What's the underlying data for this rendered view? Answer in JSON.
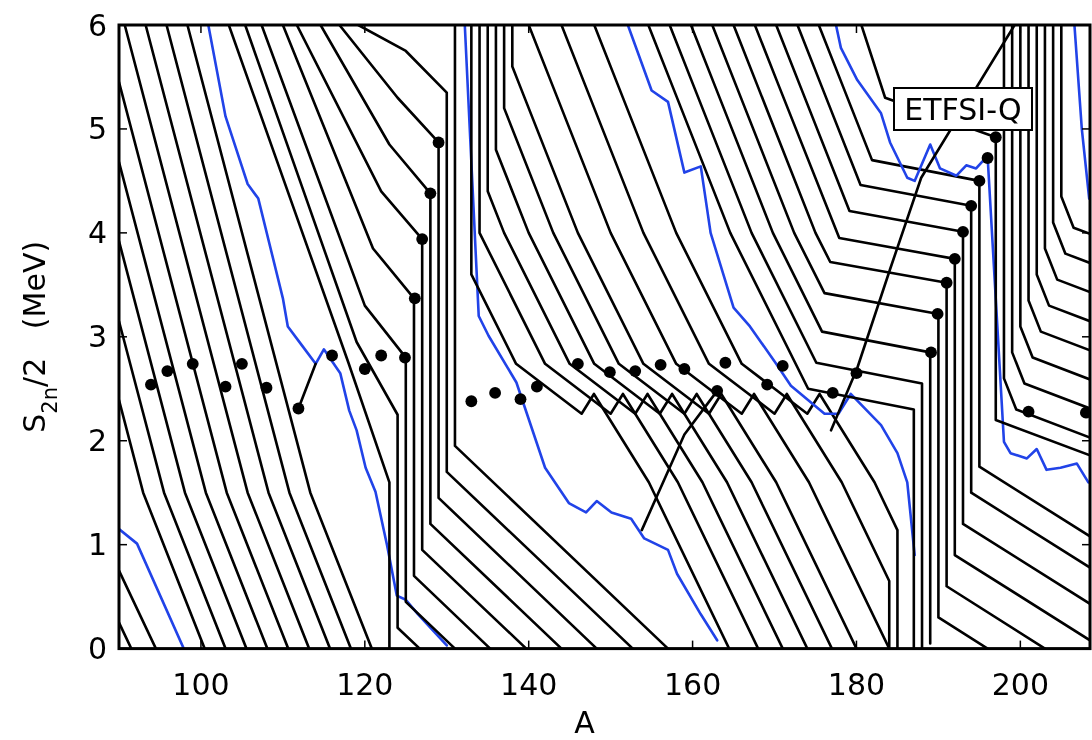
{
  "chart_data": {
    "type": "line",
    "xlabel": "A",
    "ylabel": "S$_{2n}$/2   (MeV)",
    "xlim": [
      90,
      208.5
    ],
    "ylim": [
      0,
      6
    ],
    "xticks": [
      100,
      120,
      140,
      160,
      180,
      200
    ],
    "yticks": [
      0,
      1,
      2,
      3,
      4,
      5,
      6
    ],
    "annotations": [
      "ETFSI-Q"
    ],
    "series": [
      {
        "color": "#000000",
        "x": [
          90,
          91.5
        ],
        "values": [
          0.25,
          0
        ]
      },
      {
        "color": "#000000",
        "x": [
          90,
          94.5
        ],
        "values": [
          0.75,
          0
        ]
      },
      {
        "color": "#2143e8",
        "x": [
          90,
          92.2,
          97.9
        ],
        "values": [
          1.15,
          1.01,
          0
        ]
      },
      {
        "color": "#000000",
        "x": [
          90,
          92.95,
          100.45
        ],
        "values": [
          2.39,
          1.5,
          0
        ]
      },
      {
        "color": "#000000",
        "x": [
          90,
          95.5,
          103
        ],
        "values": [
          3.15,
          1.5,
          0
        ]
      },
      {
        "color": "#000000",
        "x": [
          90,
          98.05,
          105.55
        ],
        "values": [
          3.92,
          1.5,
          0
        ]
      },
      {
        "color": "#000000",
        "x": [
          90,
          100.6,
          108.1
        ],
        "values": [
          4.68,
          1.5,
          0
        ]
      },
      {
        "color": "#000000",
        "x": [
          90,
          103.15,
          110.65
        ],
        "values": [
          5.45,
          1.5,
          0
        ]
      },
      {
        "color": "#000000",
        "x": [
          90.7,
          105.7,
          113.2
        ],
        "values": [
          6,
          1.5,
          0
        ]
      },
      {
        "color": "#000000",
        "x": [
          93.25,
          108.25,
          115.75
        ],
        "values": [
          6,
          1.5,
          0
        ]
      },
      {
        "color": "#000000",
        "x": [
          95.8,
          110.8,
          118.3
        ],
        "values": [
          6,
          1.5,
          0
        ]
      },
      {
        "color": "#000000",
        "x": [
          98.35,
          113.35,
          120.85
        ],
        "values": [
          6,
          1.5,
          0
        ]
      },
      {
        "color": "#2143e8",
        "x": [
          100.9,
          103,
          105.7,
          107,
          110,
          110.6,
          112.3,
          114,
          115,
          117,
          118.1,
          119,
          120.1,
          121.3,
          122.7,
          123.9,
          125,
          126.5,
          130
        ],
        "values": [
          6,
          5.12,
          4.47,
          4.33,
          3.37,
          3.1,
          2.92,
          2.74,
          2.88,
          2.65,
          2.29,
          2.1,
          1.74,
          1.51,
          1.0,
          0.51,
          0.47,
          0.33,
          0.03
        ]
      },
      {
        "color": "#000000",
        "x": [
          103.4,
          118,
          123,
          123
        ],
        "values": [
          6,
          2.75,
          1.6,
          0
        ]
      },
      {
        "color": "#000000",
        "x": [
          105.4,
          119,
          124,
          124,
          126.7
        ],
        "values": [
          6,
          2.95,
          2.25,
          0.2,
          0
        ]
      },
      {
        "color": "#000000",
        "x": [
          107.4,
          120,
          125,
          125,
          131
        ],
        "values": [
          6,
          3.3,
          2.8,
          0.45,
          0
        ]
      },
      {
        "color": "#000000",
        "x": [
          110,
          121,
          126,
          126,
          135.3
        ],
        "values": [
          6,
          3.85,
          3.37,
          0.7,
          0
        ]
      },
      {
        "color": "#000000",
        "x": [
          111.7,
          122,
          127,
          127,
          139.7
        ],
        "values": [
          6,
          4.4,
          3.94,
          0.95,
          0
        ]
      },
      {
        "color": "#000000",
        "x": [
          114.6,
          123,
          128,
          128,
          144
        ],
        "values": [
          6,
          4.85,
          4.38,
          1.2,
          0
        ]
      },
      {
        "color": "#000000",
        "x": [
          116.9,
          124,
          129,
          129,
          148.3
        ],
        "values": [
          6,
          5.3,
          4.87,
          1.45,
          0
        ]
      },
      {
        "color": "#000000",
        "x": [
          119.2,
          125,
          130,
          130,
          152.7
        ],
        "values": [
          6,
          5.75,
          5.35,
          1.7,
          0
        ]
      },
      {
        "color": "#000000",
        "x": [
          131,
          131,
          157
        ],
        "values": [
          6,
          1.95,
          0
        ]
      },
      {
        "color": "#2143e8",
        "x": [
          132.2,
          133.9,
          135.1,
          138.5,
          142,
          144.9,
          147,
          148.3,
          150.1,
          152.5,
          154.1,
          157,
          158.1,
          161,
          163
        ],
        "values": [
          6,
          3.2,
          3.01,
          2.56,
          1.74,
          1.4,
          1.31,
          1.42,
          1.31,
          1.25,
          1.06,
          0.95,
          0.72,
          0.33,
          0.08
        ]
      },
      {
        "color": "#000000",
        "x": [
          133,
          133,
          138.46,
          146.46,
          147.96,
          154.66,
          164.46
        ],
        "values": [
          6,
          3.6,
          2.74,
          2.26,
          2.45,
          1.6,
          0
        ]
      },
      {
        "color": "#000000",
        "x": [
          134,
          134,
          142,
          150,
          151.5,
          158.2,
          168
        ],
        "values": [
          6,
          4.0,
          2.74,
          2.26,
          2.45,
          1.6,
          0
        ]
      },
      {
        "color": "#000000",
        "x": [
          135,
          135,
          137,
          145,
          153,
          154.5,
          161.2,
          171
        ],
        "values": [
          6,
          4.4,
          4.0,
          2.74,
          2.26,
          2.45,
          1.6,
          0
        ]
      },
      {
        "color": "#000000",
        "x": [
          136,
          136,
          140,
          148,
          156,
          157.5,
          164.2,
          174
        ],
        "values": [
          6,
          4.8,
          4.0,
          2.74,
          2.26,
          2.45,
          1.6,
          0
        ]
      },
      {
        "color": "#000000",
        "x": [
          137,
          137,
          143,
          151,
          159,
          160.5,
          167.2,
          177
        ],
        "values": [
          6,
          5.2,
          4.0,
          2.74,
          2.26,
          2.45,
          1.6,
          0
        ]
      },
      {
        "color": "#000000",
        "x": [
          138,
          138,
          139,
          146,
          154,
          162,
          163.5,
          170.2,
          180
        ],
        "values": [
          6,
          5.6,
          5.4,
          4.0,
          2.74,
          2.26,
          2.45,
          1.6,
          0
        ]
      },
      {
        "color": "#000000",
        "x": [
          140,
          143,
          150,
          158,
          166,
          167.5,
          174.2,
          184
        ],
        "values": [
          6,
          5.4,
          4.0,
          2.74,
          2.26,
          2.45,
          1.6,
          0
        ]
      },
      {
        "color": "#000000",
        "x": [
          144,
          147,
          154,
          162,
          170,
          171.5,
          178.2,
          184,
          184
        ],
        "values": [
          6,
          5.4,
          4.0,
          2.74,
          2.26,
          2.45,
          1.6,
          0.65,
          0
        ]
      },
      {
        "color": "#000000",
        "x": [
          148,
          151,
          158,
          166,
          174,
          175.5,
          182.2,
          185,
          185
        ],
        "values": [
          6,
          5.4,
          4.0,
          2.74,
          2.26,
          2.45,
          1.6,
          1.14,
          0
        ]
      },
      {
        "color": "#2143e8",
        "x": [
          152.1,
          155,
          157,
          159,
          161,
          162.2,
          165,
          167,
          170.2,
          172,
          176.1,
          177.8,
          179.3,
          183,
          185,
          186.2,
          187.1
        ],
        "values": [
          6,
          5.37,
          5.26,
          4.58,
          4.64,
          4.0,
          3.28,
          3.1,
          2.74,
          2.53,
          2.26,
          2.26,
          2.45,
          2.15,
          1.88,
          1.6,
          0.9
        ]
      },
      {
        "color": "#000000",
        "x": [
          154.6,
          157.6,
          164.6,
          174.1,
          187,
          187
        ],
        "values": [
          6,
          5.4,
          4.0,
          2.5,
          2.3,
          0
        ]
      },
      {
        "color": "#000000",
        "x": [
          157.2,
          160.2,
          167.2,
          175.1,
          188,
          188
        ],
        "values": [
          6,
          5.4,
          4.0,
          2.75,
          2.55,
          0
        ]
      },
      {
        "color": "#000000",
        "x": [
          159.8,
          162.8,
          169.8,
          175.8,
          189,
          189
        ],
        "values": [
          6,
          5.4,
          4.0,
          3.05,
          2.85,
          0.05
        ]
      },
      {
        "color": "#000000",
        "x": [
          162.4,
          165.4,
          172.4,
          176.1,
          190,
          190,
          196
        ],
        "values": [
          6,
          5.4,
          4.0,
          3.42,
          3.22,
          0.3,
          0
        ]
      },
      {
        "color": "#000000",
        "x": [
          165,
          168,
          175,
          176.8,
          191,
          191,
          203
        ],
        "values": [
          6,
          5.4,
          4.0,
          3.72,
          3.52,
          0.6,
          0
        ]
      },
      {
        "color": "#000000",
        "x": [
          167.6,
          170.6,
          177.9,
          192,
          192,
          208.5
        ],
        "values": [
          6,
          5.4,
          3.95,
          3.75,
          0.9,
          0.08
        ]
      },
      {
        "color": "#000000",
        "x": [
          170.2,
          173.2,
          179.15,
          193,
          193,
          208.5
        ],
        "values": [
          6,
          5.4,
          4.21,
          4.01,
          1.2,
          0.43
        ]
      },
      {
        "color": "#000000",
        "x": [
          172.8,
          175.8,
          180.5,
          194,
          194,
          208.5
        ],
        "values": [
          6,
          5.4,
          4.46,
          4.26,
          1.5,
          0.78
        ]
      },
      {
        "color": "#000000",
        "x": [
          175.4,
          178.4,
          181.9,
          195,
          195,
          208.5
        ],
        "values": [
          6,
          5.4,
          4.7,
          4.5,
          1.75,
          1.08
        ]
      },
      {
        "color": "#2143e8",
        "x": [
          177.5,
          178.1,
          180.1,
          183,
          184.1,
          186.2,
          187.1,
          189,
          190.2,
          192.2,
          193.4,
          194.6,
          196,
          198,
          198.8,
          200.8,
          202,
          203.2,
          204.9,
          206.9,
          208.3
        ],
        "values": [
          6,
          5.78,
          5.47,
          5.15,
          4.87,
          4.53,
          4.5,
          4.85,
          4.62,
          4.55,
          4.65,
          4.62,
          4.74,
          1.99,
          1.88,
          1.83,
          1.92,
          1.72,
          1.74,
          1.78,
          1.6
        ]
      },
      {
        "color": "#000000",
        "x": [
          180.6,
          183.5,
          197,
          197,
          208.5
        ],
        "values": [
          6,
          5.3,
          4.92,
          2.2,
          1.86
        ]
      },
      {
        "color": "#000000",
        "x": [
          198,
          198,
          199.5,
          208.5
        ],
        "values": [
          6,
          2.6,
          2.3,
          2.03
        ]
      },
      {
        "color": "#000000",
        "x": [
          199,
          199,
          200.5,
          208.5
        ],
        "values": [
          6,
          2.85,
          2.55,
          2.31
        ]
      },
      {
        "color": "#000000",
        "x": [
          200,
          200,
          201.5,
          208.5
        ],
        "values": [
          6,
          3.1,
          2.8,
          2.59
        ]
      },
      {
        "color": "#000000",
        "x": [
          201,
          201,
          202.5,
          208.5
        ],
        "values": [
          6,
          3.35,
          3.05,
          2.87
        ]
      },
      {
        "color": "#000000",
        "x": [
          202,
          202,
          203.5,
          208.5
        ],
        "values": [
          6,
          3.6,
          3.3,
          3.15
        ]
      },
      {
        "color": "#000000",
        "x": [
          203,
          203,
          204.5,
          208.5
        ],
        "values": [
          6,
          3.85,
          3.55,
          3.43
        ]
      },
      {
        "color": "#000000",
        "x": [
          204,
          204,
          205.5,
          208.5
        ],
        "values": [
          6,
          4.1,
          3.8,
          3.71
        ]
      },
      {
        "color": "#000000",
        "x": [
          205,
          205,
          206.5,
          208.5
        ],
        "values": [
          6,
          4.35,
          4.05,
          3.99
        ]
      },
      {
        "color": "#2143e8",
        "x": [
          206.6,
          207.5,
          208.4
        ],
        "values": [
          6,
          5.0,
          4.33
        ]
      },
      {
        "color": "#000000",
        "x": [
          111.9,
          114
        ],
        "values": [
          2.31,
          2.74
        ]
      },
      {
        "color": "#000000",
        "x": [
          153.8,
          159,
          163
        ],
        "values": [
          1.14,
          2.06,
          2.48
        ]
      },
      {
        "color": "#000000",
        "x": [
          176.9,
          180.1,
          184.1,
          187.9,
          199.3
        ],
        "values": [
          2.1,
          2.7,
          3.65,
          4.53,
          6
        ]
      },
      {
        "type": "scatter",
        "marker": "circle",
        "color": "#000000",
        "x": [
          93.9,
          95.9,
          99,
          103,
          105,
          108,
          111.9,
          116,
          120,
          122,
          124.9,
          126.1,
          127,
          128,
          129,
          133,
          135.9,
          139,
          141,
          146,
          149.9,
          153,
          156.1,
          159,
          163,
          164,
          169.1,
          171,
          177.1,
          180,
          189.1,
          189.9,
          191,
          192,
          193,
          194,
          195,
          196,
          197,
          201,
          208
        ],
        "values": [
          2.54,
          2.67,
          2.74,
          2.52,
          2.74,
          2.51,
          2.31,
          2.82,
          2.69,
          2.82,
          2.8,
          3.37,
          3.94,
          4.38,
          4.87,
          2.38,
          2.46,
          2.4,
          2.52,
          2.74,
          2.66,
          2.67,
          2.73,
          2.69,
          2.48,
          2.75,
          2.54,
          2.72,
          2.46,
          2.65,
          2.85,
          3.22,
          3.52,
          3.75,
          4.01,
          4.26,
          4.5,
          4.72,
          4.92,
          2.28,
          2.27
        ]
      }
    ]
  }
}
